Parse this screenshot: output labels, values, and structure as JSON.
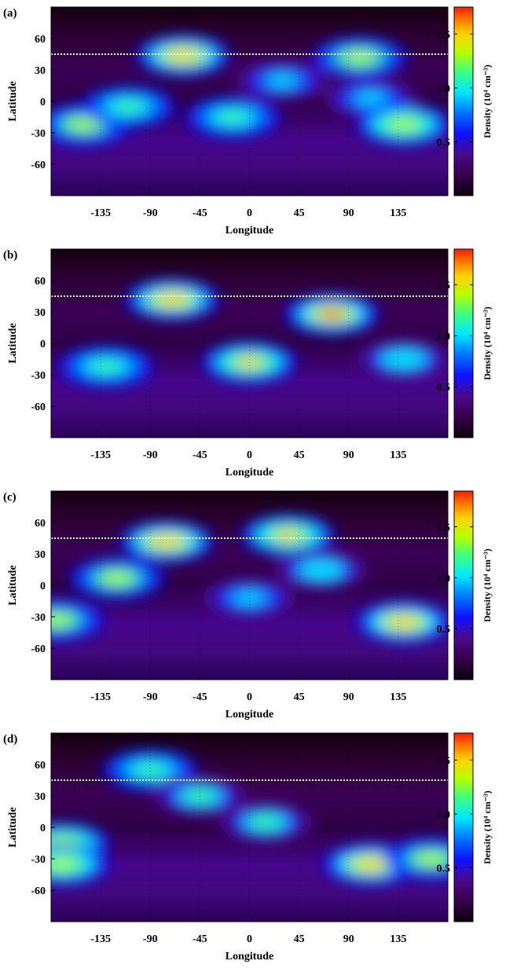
{
  "chart_data": [
    {
      "type": "heatmap",
      "panel_label": "(a)",
      "xlabel": "Longitude",
      "ylabel": "Latitude",
      "xlim": [
        -180,
        180
      ],
      "ylim": [
        -90,
        90
      ],
      "xticks": [
        -135,
        -90,
        -45,
        0,
        45,
        90,
        135
      ],
      "yticks": [
        60,
        30,
        0,
        -30,
        -60
      ],
      "reference_latitude": 45,
      "colorbar": {
        "label": "Density (10⁴ cm⁻³)",
        "ticks": [
          0.5,
          1.0,
          1.5
        ],
        "range": [
          0,
          1.75
        ]
      },
      "hotspots": [
        {
          "lon": -150,
          "lat": -22,
          "density": 1.45
        },
        {
          "lon": -110,
          "lat": -5,
          "density": 1.3
        },
        {
          "lon": -60,
          "lat": 44,
          "density": 1.6
        },
        {
          "lon": -15,
          "lat": -15,
          "density": 1.3
        },
        {
          "lon": 30,
          "lat": 20,
          "density": 1.05
        },
        {
          "lon": 100,
          "lat": 42,
          "density": 1.4
        },
        {
          "lon": 110,
          "lat": 3,
          "density": 1.1
        },
        {
          "lon": 140,
          "lat": -22,
          "density": 1.5
        }
      ]
    },
    {
      "type": "heatmap",
      "panel_label": "(b)",
      "xlabel": "Longitude",
      "ylabel": "Latitude",
      "xlim": [
        -180,
        180
      ],
      "ylim": [
        -90,
        90
      ],
      "xticks": [
        -135,
        -90,
        -45,
        0,
        45,
        90,
        135
      ],
      "yticks": [
        60,
        30,
        0,
        -30,
        -60
      ],
      "reference_latitude": 45,
      "colorbar": {
        "label": "Density (10⁴ cm⁻³)",
        "ticks": [
          0.5,
          1.0,
          1.5
        ],
        "range": [
          0,
          1.85
        ]
      },
      "hotspots": [
        {
          "lon": -130,
          "lat": -22,
          "density": 1.4
        },
        {
          "lon": -70,
          "lat": 42,
          "density": 1.7
        },
        {
          "lon": 0,
          "lat": -18,
          "density": 1.6
        },
        {
          "lon": 75,
          "lat": 28,
          "density": 1.8
        },
        {
          "lon": 140,
          "lat": -15,
          "density": 1.2
        }
      ]
    },
    {
      "type": "heatmap",
      "panel_label": "(c)",
      "xlabel": "Longitude",
      "ylabel": "Latitude",
      "xlim": [
        -180,
        180
      ],
      "ylim": [
        -90,
        90
      ],
      "xticks": [
        -135,
        -90,
        -45,
        0,
        45,
        90,
        135
      ],
      "yticks": [
        60,
        30,
        0,
        -30,
        -60
      ],
      "reference_latitude": 45,
      "colorbar": {
        "label": "Density (10⁴ cm⁻³)",
        "ticks": [
          0.5,
          1.0,
          1.5
        ],
        "range": [
          0,
          1.85
        ]
      },
      "hotspots": [
        {
          "lon": -175,
          "lat": -33,
          "density": 1.5
        },
        {
          "lon": -120,
          "lat": 7,
          "density": 1.5
        },
        {
          "lon": -75,
          "lat": 42,
          "density": 1.7
        },
        {
          "lon": 0,
          "lat": -12,
          "density": 1.1
        },
        {
          "lon": 35,
          "lat": 48,
          "density": 1.6
        },
        {
          "lon": 65,
          "lat": 15,
          "density": 1.2
        },
        {
          "lon": 140,
          "lat": -35,
          "density": 1.7
        }
      ]
    },
    {
      "type": "heatmap",
      "panel_label": "(d)",
      "xlabel": "Longitude",
      "ylabel": "Latitude",
      "xlim": [
        -180,
        180
      ],
      "ylim": [
        -90,
        90
      ],
      "xticks": [
        -135,
        -90,
        -45,
        0,
        45,
        90,
        135
      ],
      "yticks": [
        60,
        30,
        0,
        -30,
        -60
      ],
      "reference_latitude": 45,
      "colorbar": {
        "label": "Density (10⁴ cm⁻³)",
        "ticks": [
          0.5,
          1.0,
          1.5
        ],
        "range": [
          0,
          1.75
        ]
      },
      "hotspots": [
        {
          "lon": -170,
          "lat": -15,
          "density": 1.5
        },
        {
          "lon": -170,
          "lat": -35,
          "density": 1.5
        },
        {
          "lon": -90,
          "lat": 55,
          "density": 1.3
        },
        {
          "lon": -45,
          "lat": 30,
          "density": 1.2
        },
        {
          "lon": 15,
          "lat": 5,
          "density": 1.2
        },
        {
          "lon": 110,
          "lat": -35,
          "density": 1.6
        },
        {
          "lon": 165,
          "lat": -30,
          "density": 1.4
        }
      ]
    }
  ]
}
